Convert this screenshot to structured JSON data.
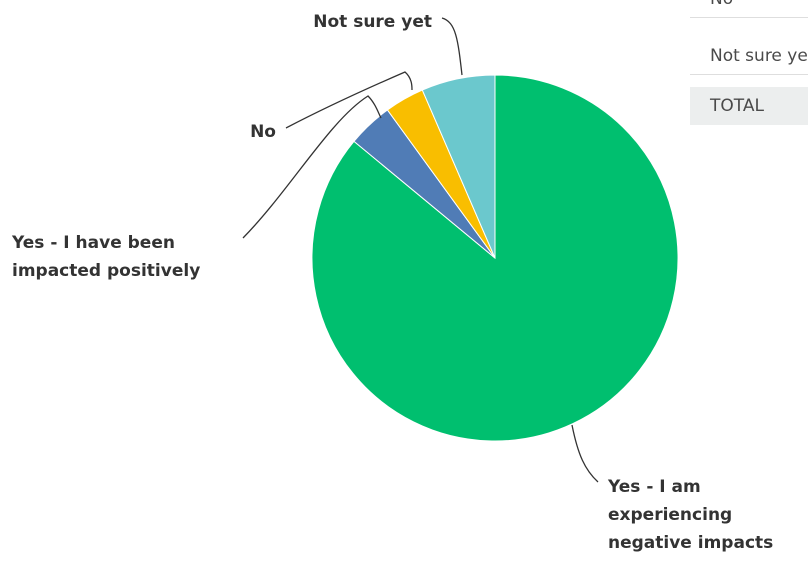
{
  "chart_data": {
    "type": "pie",
    "slices": [
      {
        "label": "Yes - I am experiencing negative impacts",
        "value": 86.0,
        "color": "#00bf6f"
      },
      {
        "label": "Yes - I have been impacted positively",
        "value": 4.0,
        "color": "#507cb6"
      },
      {
        "label": "No",
        "value": 3.5,
        "color": "#f9be00"
      },
      {
        "label": "Not sure yet",
        "value": 6.5,
        "color": "#6bc8cd"
      }
    ]
  },
  "table": {
    "rows": [
      {
        "label": "No"
      },
      {
        "label": "Not sure yet"
      },
      {
        "label": "TOTAL"
      }
    ]
  }
}
